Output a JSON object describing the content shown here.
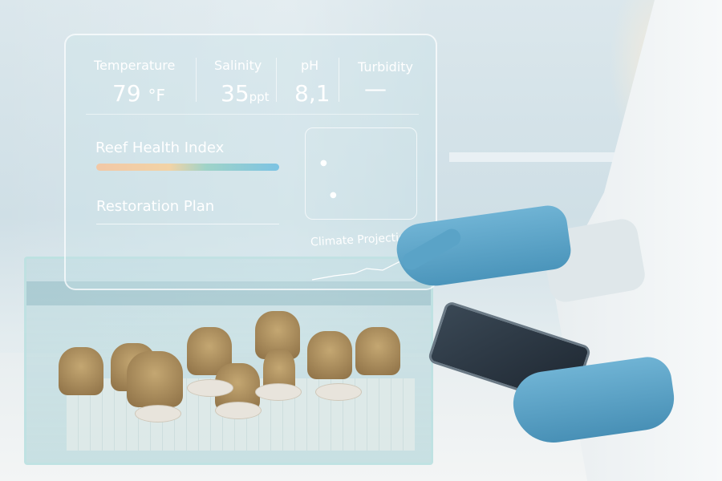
{
  "metrics": [
    {
      "label": "Temperature",
      "value": "79",
      "unit": "°F"
    },
    {
      "label": "Salinity",
      "value": "35",
      "unit": "ppt"
    },
    {
      "label": "pH",
      "value": "8,1",
      "unit": ""
    },
    {
      "label": "Turbidity",
      "value": "—",
      "unit": ""
    }
  ],
  "reef_health": {
    "label": "Reef Health Index"
  },
  "restoration": {
    "label": "Restoration Plan"
  },
  "climate": {
    "label": "Climate Projections"
  },
  "colors": {
    "glove": "#5aa3c7",
    "panel": "#c8e1e8"
  }
}
